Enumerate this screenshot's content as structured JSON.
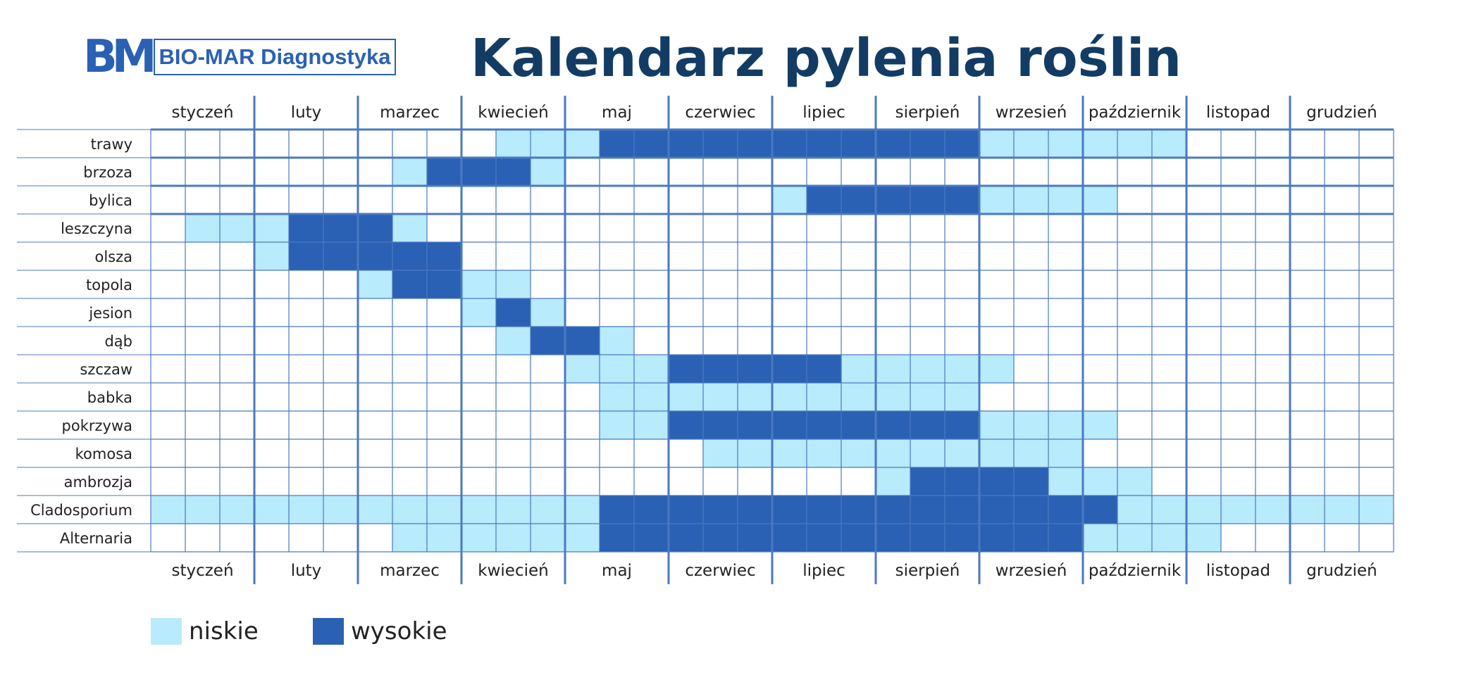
{
  "header": {
    "logo_mark": "BM",
    "logo_text": "BIO-MAR Diagnostyka",
    "title": "Kalendarz pylenia roślin"
  },
  "colors": {
    "low": "#b8ebfb",
    "high": "#2a61b4",
    "grid": "#4a79c2",
    "title": "#123c64",
    "label": "#222222"
  },
  "chart_data": {
    "type": "heatmap",
    "title": "Kalendarz pylenia roślin",
    "periods_per_month": 3,
    "months": [
      "styczeń",
      "luty",
      "marzec",
      "kwiecień",
      "maj",
      "czerwiec",
      "lipiec",
      "sierpień",
      "wrzesień",
      "październik",
      "listopad",
      "grudzień"
    ],
    "legend": [
      {
        "key": "low",
        "label": "niskie"
      },
      {
        "key": "high",
        "label": "wysokie"
      }
    ],
    "legend_position": "bottom-left",
    "rows": [
      {
        "name": "trawy",
        "low": [
          [
            11,
            13
          ],
          [
            25,
            30
          ]
        ],
        "high": [
          [
            14,
            24
          ]
        ]
      },
      {
        "name": "brzoza",
        "low": [
          [
            8,
            8
          ],
          [
            12,
            12
          ]
        ],
        "high": [
          [
            9,
            11
          ]
        ]
      },
      {
        "name": "bylica",
        "low": [
          [
            19,
            19
          ],
          [
            25,
            28
          ]
        ],
        "high": [
          [
            20,
            24
          ]
        ]
      },
      {
        "name": "leszczyna",
        "low": [
          [
            2,
            4
          ],
          [
            8,
            8
          ]
        ],
        "high": [
          [
            5,
            7
          ]
        ]
      },
      {
        "name": "olsza",
        "low": [
          [
            4,
            4
          ]
        ],
        "high": [
          [
            5,
            9
          ]
        ]
      },
      {
        "name": "topola",
        "low": [
          [
            7,
            7
          ],
          [
            10,
            11
          ]
        ],
        "high": [
          [
            8,
            9
          ]
        ]
      },
      {
        "name": "jesion",
        "low": [
          [
            10,
            10
          ],
          [
            12,
            12
          ]
        ],
        "high": [
          [
            11,
            11
          ]
        ]
      },
      {
        "name": "dąb",
        "low": [
          [
            11,
            11
          ],
          [
            14,
            14
          ]
        ],
        "high": [
          [
            12,
            13
          ]
        ]
      },
      {
        "name": "szczaw",
        "low": [
          [
            13,
            15
          ],
          [
            21,
            25
          ]
        ],
        "high": [
          [
            16,
            20
          ]
        ]
      },
      {
        "name": "babka",
        "low": [
          [
            14,
            24
          ]
        ],
        "high": []
      },
      {
        "name": "pokrzywa",
        "low": [
          [
            14,
            15
          ],
          [
            25,
            28
          ]
        ],
        "high": [
          [
            16,
            24
          ]
        ]
      },
      {
        "name": "komosa",
        "low": [
          [
            17,
            27
          ]
        ],
        "high": []
      },
      {
        "name": "ambrozja",
        "low": [
          [
            22,
            22
          ],
          [
            27,
            29
          ]
        ],
        "high": [
          [
            23,
            26
          ]
        ]
      },
      {
        "name": "Cladosporium",
        "low": [
          [
            1,
            13
          ],
          [
            29,
            36
          ]
        ],
        "high": [
          [
            14,
            27
          ],
          [
            28,
            28
          ]
        ]
      },
      {
        "name": "Alternaria",
        "low": [
          [
            8,
            13
          ],
          [
            28,
            31
          ]
        ],
        "high": [
          [
            14,
            27
          ]
        ]
      }
    ]
  }
}
